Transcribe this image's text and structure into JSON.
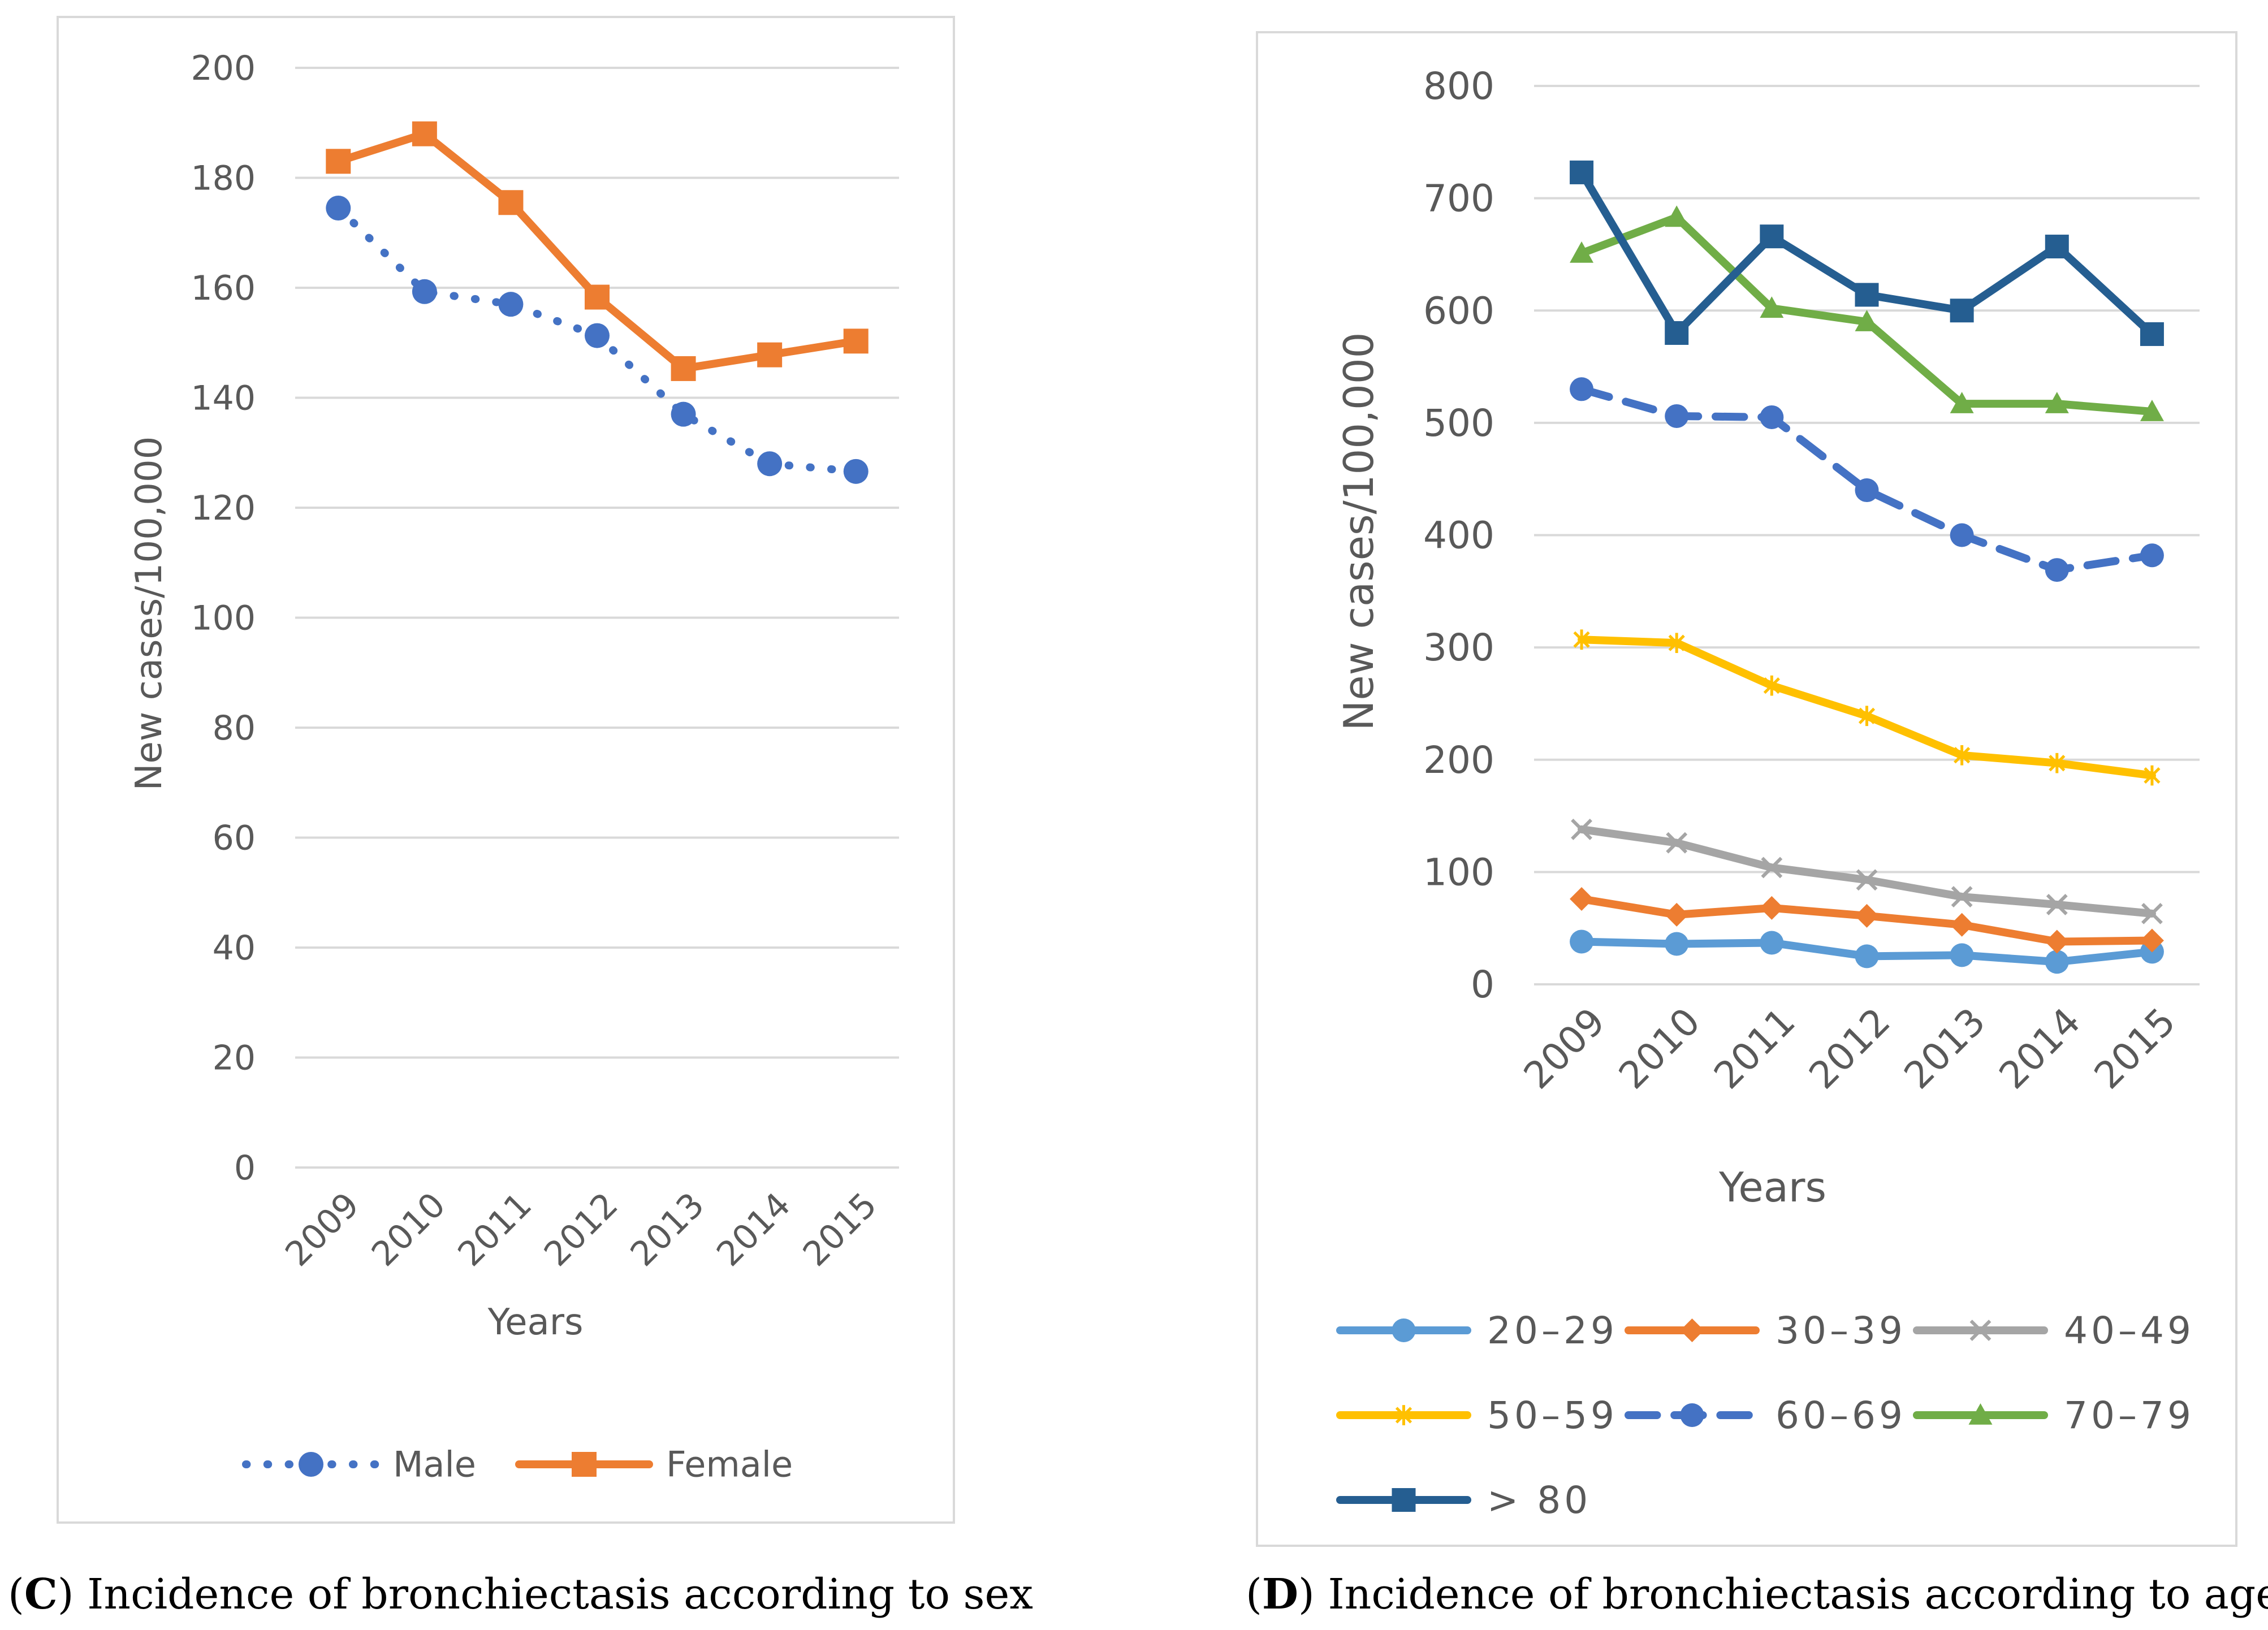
{
  "chart_data": [
    {
      "type": "line",
      "panel": "C",
      "title": "",
      "xlabel": "Years",
      "ylabel": "New cases/100,000",
      "categories": [
        "2009",
        "2010",
        "2011",
        "2012",
        "2013",
        "2014",
        "2015"
      ],
      "ylim": [
        0,
        200
      ],
      "yticks": [
        0,
        20,
        40,
        60,
        80,
        100,
        120,
        140,
        160,
        180,
        200
      ],
      "grid": true,
      "legend": "bottom",
      "series": [
        {
          "name": "Male",
          "values": [
            174.5,
            159.3,
            157.0,
            151.3,
            137.0,
            128.0,
            126.6
          ],
          "color": "#4472C4",
          "dash": "dotted",
          "marker": "circle"
        },
        {
          "name": "Female",
          "values": [
            183.0,
            188.0,
            175.5,
            158.3,
            145.3,
            147.8,
            150.3
          ],
          "color": "#ED7D31",
          "dash": "solid",
          "marker": "square"
        }
      ],
      "caption": {
        "letter": "C",
        "text": ") Incidence of bronchiectasis according to sex"
      }
    },
    {
      "type": "line",
      "panel": "D",
      "title": "",
      "xlabel": "Years",
      "ylabel": "New cases/100,000",
      "categories": [
        "2009",
        "2010",
        "2011",
        "2012",
        "2013",
        "2014",
        "2015"
      ],
      "ylim": [
        0,
        800
      ],
      "yticks": [
        0,
        100,
        200,
        300,
        400,
        500,
        600,
        700,
        800
      ],
      "grid": true,
      "legend": "bottom",
      "series": [
        {
          "name": "20–29",
          "values": [
            38,
            36,
            37,
            25,
            26,
            20,
            29
          ],
          "color": "#5B9BD5",
          "dash": "solid",
          "marker": "circle"
        },
        {
          "name": "30–39",
          "values": [
            76,
            62,
            68,
            61,
            53,
            38,
            39
          ],
          "color": "#ED7D31",
          "dash": "solid",
          "marker": "diamond"
        },
        {
          "name": "40–49",
          "values": [
            138,
            126,
            104,
            93,
            78,
            71,
            63
          ],
          "color": "#A5A5A5",
          "dash": "solid",
          "marker": "x"
        },
        {
          "name": "50–59",
          "values": [
            307,
            304,
            266,
            239,
            204,
            197,
            186
          ],
          "color": "#FFC000",
          "dash": "solid",
          "marker": "asterisk"
        },
        {
          "name": "60–69",
          "values": [
            530,
            506,
            505,
            440,
            400,
            369,
            382
          ],
          "color": "#4472C4",
          "dash": "dashed",
          "marker": "circle"
        },
        {
          "name": "70–79",
          "values": [
            651,
            683,
            602,
            590,
            517,
            517,
            510
          ],
          "color": "#70AD47",
          "dash": "solid",
          "marker": "triangle"
        },
        {
          "name": "> 80",
          "values": [
            723,
            580,
            666,
            614,
            600,
            657,
            579
          ],
          "color": "#255E91",
          "dash": "solid",
          "marker": "square"
        }
      ],
      "caption": {
        "letter": "D",
        "text": ") Incidence of bronchiectasis according to age"
      }
    }
  ]
}
